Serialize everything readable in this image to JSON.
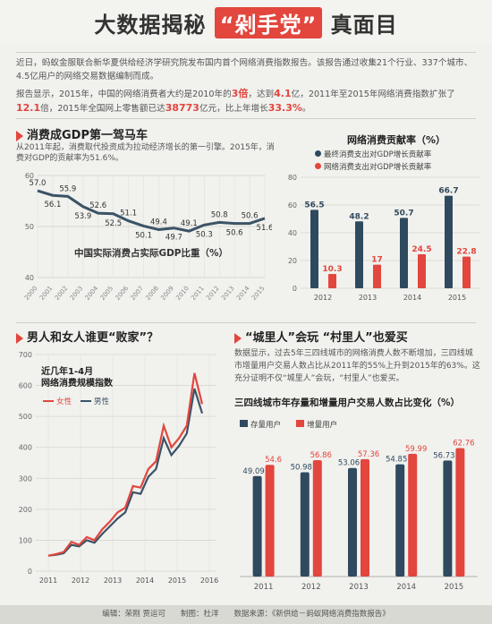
{
  "header": {
    "title_left": "大数据揭秘",
    "title_highlight": "“剁手党”",
    "title_right": "真面目"
  },
  "intro": {
    "p1": "近日，蚂蚁金服联合新华夏供给经济学研究院发布国内首个网络消费指数报告。该报告通过收集21个行业、337个城市、4.5亿用户的网络交易数据编制而成。",
    "p2_a": "报告显示，2015年，中国的网络消费者大约是2010年的",
    "p2_v1": "3倍",
    "p2_b": "，达到",
    "p2_v2": "4.1",
    "p2_c": "亿，2011年至2015年网络消费指数扩张了",
    "p2_v3": "12.1",
    "p2_d": "倍，2015年全国网上零售额已达",
    "p2_v4": "38773",
    "p2_e": "亿元，比上年增长",
    "p2_v5": "33.3%",
    "p2_f": "。"
  },
  "section1": {
    "title": "消费成GDP第一驾马车",
    "desc": "从2011年起，消费取代投资成为拉动经济增长的第一引擎。2015年，消费对GDP的贡献率为51.6%。"
  },
  "section2": {
    "title": "男人和女人谁更“败家”？"
  },
  "section3": {
    "title": "“城里人”会玩 “村里人”也爱买",
    "desc": "数据显示，过去5年三四线城市的网络消费人数不断增加，三四线城市增量用户交易人数占比从2011年的55%上升到2015年的63%。这充分证明不仅“城里人”会玩，“村里人”也爱买。"
  },
  "footer": {
    "text": "编辑：荣刚 贾运可　　制图：杜洋　　数据来源：《新供给－蚂蚁网络消费指数报告》"
  },
  "colors": {
    "red": "#e2463d",
    "navy": "#2f4a5f",
    "line_dark": "#3b5366"
  },
  "chart_data": [
    {
      "type": "line",
      "title": "中国实际消费占实际GDP比重（%）",
      "x": [
        "2000",
        "2001",
        "2002",
        "2003",
        "2004",
        "2005",
        "2006",
        "2007",
        "2008",
        "2009",
        "2010",
        "2011",
        "2012",
        "2013",
        "2014",
        "2015"
      ],
      "values": [
        57.0,
        56.1,
        55.9,
        53.9,
        52.6,
        52.5,
        51.1,
        50.1,
        49.4,
        49.7,
        49.1,
        50.3,
        50.8,
        50.6,
        50.6,
        51.6
      ],
      "value_labels": [
        "57.0",
        "56.1",
        "55.9",
        "53.9",
        "52.6",
        "52.5",
        "51.1",
        "50.1",
        "49.4",
        "49.7",
        "49.1",
        "50.3",
        "50.8",
        "50.6",
        "50.6",
        "51.6"
      ],
      "ylim": [
        40,
        60
      ],
      "yticks": [
        "60",
        "50",
        "40"
      ],
      "grid": true
    },
    {
      "type": "bar",
      "title": "网络消费贡献率（%）",
      "categories": [
        "2012",
        "2013",
        "2014",
        "2015"
      ],
      "series": [
        {
          "name": "最终消费支出对GDP增长贡献率",
          "values": [
            56.5,
            48.2,
            50.7,
            66.7
          ],
          "labels": [
            "56.5",
            "48.2",
            "50.7",
            "66.7"
          ],
          "color": "#2f4a5f"
        },
        {
          "name": "网络消费支出对GDP增长贡献率",
          "values": [
            10.3,
            17,
            24.5,
            22.8
          ],
          "labels": [
            "10.3",
            "17",
            "24.5",
            "22.8"
          ],
          "color": "#e2463d"
        }
      ],
      "ylim": [
        0,
        80
      ],
      "yticks": [
        "80",
        "60",
        "40",
        "20",
        "0"
      ],
      "grid": true
    },
    {
      "type": "line",
      "title": "近几年1-4月 网络消费规模指数",
      "x_ticks": [
        "2011",
        "2012",
        "2013",
        "2014",
        "2015",
        "2016"
      ],
      "series": [
        {
          "name": "女性",
          "color": "#e2463d",
          "values": [
            50,
            55,
            62,
            95,
            85,
            110,
            100,
            135,
            160,
            190,
            205,
            275,
            270,
            330,
            355,
            470,
            400,
            430,
            470,
            640,
            540
          ]
        },
        {
          "name": "男性",
          "color": "#3b5366",
          "values": [
            50,
            53,
            58,
            85,
            80,
            100,
            92,
            120,
            145,
            170,
            190,
            255,
            250,
            305,
            330,
            430,
            375,
            405,
            445,
            590,
            510
          ]
        }
      ],
      "ylim": [
        0,
        700
      ],
      "yticks": [
        "700",
        "600",
        "500",
        "400",
        "300",
        "200",
        "100",
        "0"
      ],
      "grid": true
    },
    {
      "type": "bar",
      "title": "三四线城市年存量和增量用户交易人数占比变化（%）",
      "categories": [
        "2011",
        "2012",
        "2013",
        "2014",
        "2015"
      ],
      "series": [
        {
          "name": "存量用户",
          "values": [
            49.09,
            50.98,
            53.06,
            54.85,
            56.73
          ],
          "labels": [
            "49.09",
            "50.98",
            "53.06",
            "54.85",
            "56.73"
          ],
          "color": "#2f4a5f"
        },
        {
          "name": "增量用户",
          "values": [
            54.6,
            56.86,
            57.36,
            59.99,
            62.76
          ],
          "labels": [
            "54.6",
            "56.86",
            "57.36",
            "59.99",
            "62.76"
          ],
          "color": "#e2463d"
        }
      ],
      "ylim": [
        0,
        70
      ],
      "grid": false
    }
  ]
}
